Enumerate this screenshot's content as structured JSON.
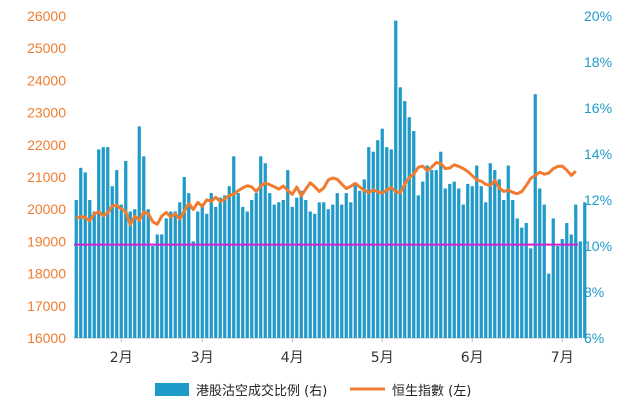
{
  "chart_data": {
    "type": "bar+line",
    "colors": {
      "bars": "#1F9BC9",
      "line": "#F07C30",
      "reference": "#D21FD2",
      "left_axis": "#F07C30",
      "right_axis": "#1F9BC9"
    },
    "x_month_labels": [
      "2月",
      "3月",
      "4月",
      "5月",
      "6月",
      "7月"
    ],
    "left_axis": {
      "ticks": [
        "16000",
        "17000",
        "18000",
        "19000",
        "20000",
        "21000",
        "22000",
        "23000",
        "24000",
        "25000",
        "26000"
      ],
      "ylim": [
        16000,
        26000
      ]
    },
    "right_axis": {
      "ticks": [
        "6%",
        "8%",
        "10%",
        "12%",
        "14%",
        "16%",
        "18%",
        "20%"
      ],
      "ylim": [
        6,
        20
      ],
      "unit": "%"
    },
    "reference_line": {
      "value_left": 18900
    },
    "series": [
      {
        "name": "港股沽空成交比例 (右)",
        "kind": "bar",
        "axis": "right",
        "values": [
          12.0,
          13.4,
          13.2,
          12.0,
          11.5,
          14.2,
          14.3,
          14.3,
          12.6,
          13.3,
          11.8,
          13.7,
          11.5,
          11.6,
          15.2,
          13.9,
          11.6,
          10.0,
          10.5,
          10.5,
          11.2,
          11.5,
          11.5,
          11.9,
          13.0,
          12.3,
          10.2,
          11.5,
          11.8,
          11.4,
          12.3,
          11.7,
          12.1,
          12.2,
          12.6,
          13.9,
          12.3,
          11.7,
          11.5,
          12.0,
          12.3,
          13.9,
          13.6,
          12.3,
          11.8,
          11.9,
          12.0,
          13.3,
          11.7,
          12.1,
          12.4,
          12.0,
          11.5,
          11.4,
          11.9,
          11.9,
          11.6,
          11.8,
          12.3,
          11.8,
          12.3,
          11.9,
          12.7,
          12.4,
          12.9,
          14.3,
          14.1,
          14.6,
          15.1,
          14.3,
          14.2,
          19.8,
          16.9,
          16.3,
          15.6,
          15.0,
          12.2,
          12.8,
          13.5,
          13.3,
          13.3,
          14.1,
          12.5,
          12.7,
          12.8,
          12.5,
          11.8,
          12.7,
          12.6,
          13.5,
          12.6,
          11.9,
          13.6,
          13.3,
          12.9,
          12.0,
          13.5,
          12.0,
          11.2,
          10.8,
          11.0,
          9.9,
          16.6,
          12.5,
          11.8,
          8.8,
          11.2,
          10.0,
          10.3,
          11.0,
          10.5,
          11.8,
          10.2,
          11.9
        ],
        "color": "#1F9BC9"
      },
      {
        "name": "恒生指數 (左)",
        "kind": "line",
        "axis": "left",
        "values": [
          19720,
          19770,
          19740,
          19640,
          19860,
          19920,
          19800,
          19890,
          20100,
          20120,
          20010,
          19920,
          19520,
          19780,
          19660,
          19910,
          19860,
          19610,
          19530,
          19790,
          19900,
          19760,
          19850,
          19700,
          19940,
          20180,
          19990,
          20210,
          20090,
          20290,
          20250,
          20370,
          20240,
          20320,
          20430,
          20460,
          20580,
          20660,
          20730,
          20690,
          20550,
          20730,
          20810,
          20760,
          20700,
          20620,
          20720,
          20580,
          20460,
          20690,
          20420,
          20620,
          20820,
          20700,
          20550,
          20660,
          20910,
          20970,
          20930,
          20780,
          20640,
          20710,
          20800,
          20690,
          20580,
          20520,
          20600,
          20540,
          20500,
          20600,
          20670,
          20550,
          20510,
          20780,
          20990,
          21090,
          21300,
          21340,
          21190,
          21310,
          21450,
          21420,
          21260,
          21280,
          21380,
          21330,
          21260,
          21170,
          21040,
          20910,
          20870,
          20770,
          20740,
          20890,
          20660,
          20550,
          20600,
          20520,
          20480,
          20550,
          20740,
          20960,
          21050,
          21150,
          21090,
          21120,
          21260,
          21330,
          21340,
          21210,
          21050,
          21180
        ],
        "color": "#F07C30"
      }
    ],
    "x_count": 112,
    "x_month_start_index": [
      10,
      28,
      48,
      68,
      88,
      108
    ]
  }
}
